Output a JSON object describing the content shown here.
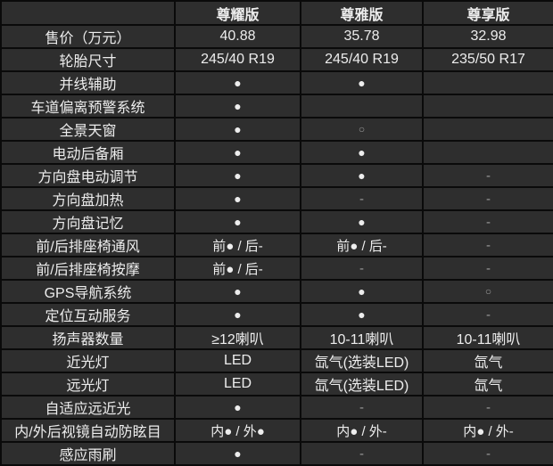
{
  "colors": {
    "border": "#0a0a0a",
    "cell_background": "#2e2e2e",
    "text_bright": "#ededed",
    "text_dim": "#9b9b9b"
  },
  "legend": {
    "filled_dot": "●",
    "hollow_circle": "○",
    "dash": "-"
  },
  "chart_data": {
    "type": "table",
    "columns": [
      "",
      "尊耀版",
      "尊雅版",
      "尊享版"
    ],
    "rows": [
      {
        "label": "售价（万元）",
        "cells": [
          {
            "kind": "text",
            "text": "40.88"
          },
          {
            "kind": "text",
            "text": "35.78"
          },
          {
            "kind": "text",
            "text": "32.98"
          }
        ]
      },
      {
        "label": "轮胎尺寸",
        "cells": [
          {
            "kind": "text",
            "text": "245/40 R19"
          },
          {
            "kind": "text",
            "text": "245/40 R19"
          },
          {
            "kind": "text",
            "text": "235/50 R17"
          }
        ]
      },
      {
        "label": "并线辅助",
        "cells": [
          {
            "kind": "dot",
            "text": "●"
          },
          {
            "kind": "dot",
            "text": "●"
          },
          {
            "kind": "empty",
            "text": ""
          }
        ]
      },
      {
        "label": "车道偏离预警系统",
        "cells": [
          {
            "kind": "dot",
            "text": "●"
          },
          {
            "kind": "empty",
            "text": ""
          },
          {
            "kind": "empty",
            "text": ""
          }
        ]
      },
      {
        "label": "全景天窗",
        "cells": [
          {
            "kind": "dot",
            "text": "●"
          },
          {
            "kind": "circle",
            "text": "○"
          },
          {
            "kind": "empty",
            "text": ""
          }
        ]
      },
      {
        "label": "电动后备厢",
        "cells": [
          {
            "kind": "dot",
            "text": "●"
          },
          {
            "kind": "dot",
            "text": "●"
          },
          {
            "kind": "empty",
            "text": ""
          }
        ]
      },
      {
        "label": "方向盘电动调节",
        "cells": [
          {
            "kind": "dot",
            "text": "●"
          },
          {
            "kind": "dot",
            "text": "●"
          },
          {
            "kind": "dash",
            "text": "-"
          }
        ]
      },
      {
        "label": "方向盘加热",
        "cells": [
          {
            "kind": "dot",
            "text": "●"
          },
          {
            "kind": "dash",
            "text": "-"
          },
          {
            "kind": "dash",
            "text": "-"
          }
        ]
      },
      {
        "label": "方向盘记忆",
        "cells": [
          {
            "kind": "dot",
            "text": "●"
          },
          {
            "kind": "dot",
            "text": "●"
          },
          {
            "kind": "dash",
            "text": "-"
          }
        ]
      },
      {
        "label": "前/后排座椅通风",
        "cells": [
          {
            "kind": "mixed",
            "text": "前● / 后-"
          },
          {
            "kind": "mixed",
            "text": "前● / 后-"
          },
          {
            "kind": "dash",
            "text": "-"
          }
        ]
      },
      {
        "label": "前/后排座椅按摩",
        "cells": [
          {
            "kind": "mixed",
            "text": "前● / 后-"
          },
          {
            "kind": "dash",
            "text": "-"
          },
          {
            "kind": "dash",
            "text": "-"
          }
        ]
      },
      {
        "label": "GPS导航系统",
        "cells": [
          {
            "kind": "dot",
            "text": "●"
          },
          {
            "kind": "dot",
            "text": "●"
          },
          {
            "kind": "circle",
            "text": "○"
          }
        ]
      },
      {
        "label": "定位互动服务",
        "cells": [
          {
            "kind": "dot",
            "text": "●"
          },
          {
            "kind": "dot",
            "text": "●"
          },
          {
            "kind": "dash",
            "text": "-"
          }
        ]
      },
      {
        "label": "扬声器数量",
        "cells": [
          {
            "kind": "text",
            "text": "≥12喇叭"
          },
          {
            "kind": "text",
            "text": "10-11喇叭"
          },
          {
            "kind": "text",
            "text": "10-11喇叭"
          }
        ]
      },
      {
        "label": "近光灯",
        "cells": [
          {
            "kind": "text",
            "text": "LED"
          },
          {
            "kind": "text",
            "text": "氙气(选装LED)"
          },
          {
            "kind": "text",
            "text": "氙气"
          }
        ]
      },
      {
        "label": "远光灯",
        "cells": [
          {
            "kind": "text",
            "text": "LED"
          },
          {
            "kind": "text",
            "text": "氙气(选装LED)"
          },
          {
            "kind": "text",
            "text": "氙气"
          }
        ]
      },
      {
        "label": "自适应远近光",
        "cells": [
          {
            "kind": "dot",
            "text": "●"
          },
          {
            "kind": "dash",
            "text": "-"
          },
          {
            "kind": "dash",
            "text": "-"
          }
        ]
      },
      {
        "label": "内/外后视镜自动防眩目",
        "cells": [
          {
            "kind": "mixed",
            "text": "内● / 外●"
          },
          {
            "kind": "mixed",
            "text": "内● / 外-"
          },
          {
            "kind": "mixed",
            "text": "内● / 外-"
          }
        ]
      },
      {
        "label": "感应雨刷",
        "cells": [
          {
            "kind": "dot",
            "text": "●"
          },
          {
            "kind": "dash",
            "text": "-"
          },
          {
            "kind": "dash",
            "text": "-"
          }
        ]
      }
    ]
  }
}
